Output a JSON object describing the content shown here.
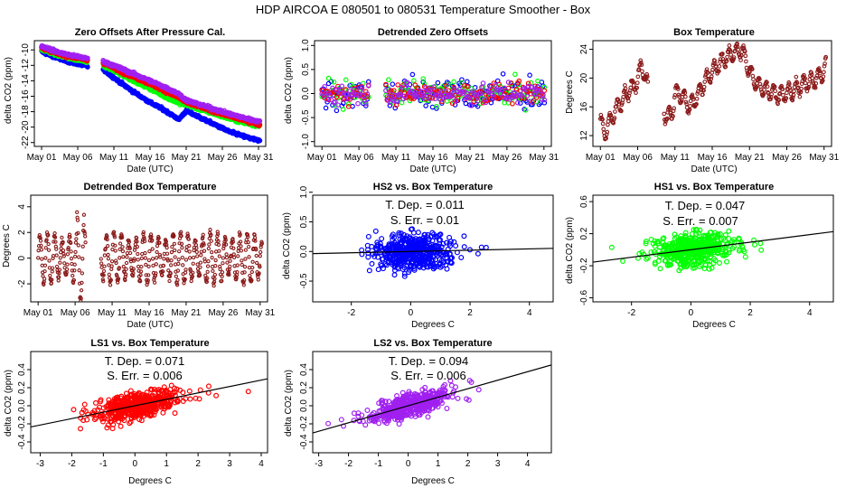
{
  "figure": {
    "title": "HDP    AIRCOA E    080501 to 080531    Temperature Smoother - Box"
  },
  "chart_data": [
    {
      "type": "scatter",
      "title": "Zero Offsets After Pressure Cal.",
      "xlabel": "Date (UTC)",
      "ylabel": "delta CO2 (ppm)",
      "xlim": [
        0,
        32
      ],
      "ylim": [
        -22.5,
        -8.8
      ],
      "xticks": [
        1,
        6,
        11,
        16,
        21,
        26,
        31
      ],
      "xticklabels": [
        "May 01",
        "May 06",
        "May 11",
        "May 16",
        "May 21",
        "May 26",
        "May 31"
      ],
      "yticks": [
        -22,
        -20,
        -18,
        -16,
        -14,
        -12,
        -10
      ],
      "yticklabels": [
        "-22",
        "-20",
        "-18",
        "-16",
        "-14",
        "-12",
        "-10"
      ],
      "gaps": [
        [
          7.4,
          9.5
        ]
      ],
      "series": [
        {
          "name": "HS2",
          "color": "#0000ff",
          "x": [
            1,
            3,
            5,
            7.3,
            9.6,
            12,
            14,
            16,
            18,
            20,
            21,
            23,
            25,
            27,
            29,
            31.2
          ],
          "y": [
            -10.2,
            -11,
            -11.6,
            -12.1,
            -12.6,
            -14.3,
            -15.6,
            -16.8,
            -17.8,
            -19,
            -17.9,
            -18.8,
            -19.7,
            -20.6,
            -21.2,
            -21.8
          ]
        },
        {
          "name": "HS1",
          "color": "#00ff00",
          "x": [
            1,
            3,
            5,
            7.3,
            9.6,
            12,
            14,
            16,
            18,
            20,
            21,
            23,
            25,
            27,
            29,
            31.2
          ],
          "y": [
            -9.9,
            -10.6,
            -11.1,
            -11.5,
            -12,
            -13.2,
            -14.1,
            -15,
            -16,
            -16.9,
            -17.1,
            -17.7,
            -18.3,
            -18.9,
            -19.4,
            -19.9
          ]
        },
        {
          "name": "LS1",
          "color": "#ff0000",
          "x": [
            1,
            3,
            5,
            7.3,
            9.6,
            12,
            14,
            16,
            18,
            20,
            21,
            23,
            25,
            27,
            29,
            31.2
          ],
          "y": [
            -9.7,
            -10.4,
            -10.9,
            -11.3,
            -11.7,
            -12.8,
            -13.6,
            -14.4,
            -15.3,
            -16.2,
            -16.8,
            -17.4,
            -18,
            -18.6,
            -19.1,
            -19.7
          ]
        },
        {
          "name": "LS2",
          "color": "#a020f0",
          "x": [
            1,
            3,
            5,
            7.3,
            9.6,
            12,
            14,
            16,
            18,
            20,
            21,
            23,
            25,
            27,
            29,
            31.2
          ],
          "y": [
            -9.5,
            -10.2,
            -10.7,
            -11.1,
            -11.5,
            -12.4,
            -13.2,
            -14,
            -14.8,
            -15.7,
            -16.5,
            -17.1,
            -17.7,
            -18.3,
            -18.8,
            -19.3
          ]
        }
      ]
    },
    {
      "type": "scatter",
      "title": "Detrended Zero Offsets",
      "xlabel": "Date (UTC)",
      "ylabel": "delta CO2 (ppm)",
      "xlim": [
        0,
        32
      ],
      "ylim": [
        -1.1,
        1.1
      ],
      "xticks": [
        1,
        6,
        11,
        16,
        21,
        26,
        31
      ],
      "xticklabels": [
        "May 01",
        "May 06",
        "May 11",
        "May 16",
        "May 21",
        "May 26",
        "May 31"
      ],
      "yticks": [
        -1.0,
        -0.5,
        0.0,
        0.5,
        1.0
      ],
      "yticklabels": [
        "-1.0",
        "-0.5",
        "0.0",
        "0.5",
        "1.0"
      ],
      "gaps": [
        [
          7.4,
          9.5
        ]
      ],
      "spread": {
        "HS2": 0.32,
        "HS1": 0.22,
        "LS1": 0.18,
        "LS2": 0.18
      },
      "series_names": [
        "HS2",
        "HS1",
        "LS1",
        "LS2"
      ],
      "series_colors": [
        "#0000ff",
        "#00ff00",
        "#ff0000",
        "#a020f0"
      ]
    },
    {
      "type": "line",
      "title": "Box Temperature",
      "xlabel": "Date (UTC)",
      "ylabel": "Degrees C",
      "xlim": [
        0,
        32
      ],
      "ylim": [
        10.5,
        25.2
      ],
      "xticks": [
        1,
        6,
        11,
        16,
        21,
        26,
        31
      ],
      "xticklabels": [
        "May 01",
        "May 06",
        "May 11",
        "May 16",
        "May 21",
        "May 26",
        "May 31"
      ],
      "yticks": [
        12,
        16,
        20,
        24
      ],
      "yticklabels": [
        "12",
        "16",
        "20",
        "24"
      ],
      "color": "#8b1a1a",
      "gaps": [
        [
          7.4,
          9.5
        ]
      ],
      "x": [
        1,
        1.5,
        2,
        3,
        4,
        5,
        6,
        6.5,
        7,
        7.3,
        9.6,
        10.5,
        11,
        12,
        13,
        14,
        15,
        16,
        17,
        18,
        19,
        20,
        21,
        22,
        23,
        24,
        25,
        26,
        27,
        28,
        29,
        30,
        31,
        31.3
      ],
      "y": [
        14.5,
        12,
        13.5,
        15.5,
        17,
        18.5,
        19.5,
        22,
        20,
        19,
        15,
        14.5,
        18,
        17.5,
        16,
        17.5,
        19.5,
        21,
        22,
        23,
        23.5,
        24,
        21,
        19,
        18.5,
        18,
        17.5,
        18,
        18.5,
        19,
        19.5,
        20,
        21,
        22
      ]
    },
    {
      "type": "line",
      "title": "Detrended Box Temperature",
      "xlabel": "Date (UTC)",
      "ylabel": "Degrees C",
      "xlim": [
        0,
        32
      ],
      "ylim": [
        -3.4,
        4.9
      ],
      "xticks": [
        1,
        6,
        11,
        16,
        21,
        26,
        31
      ],
      "xticklabels": [
        "May 01",
        "May 06",
        "May 11",
        "May 16",
        "May 21",
        "May 26",
        "May 31"
      ],
      "yticks": [
        -2,
        0,
        2,
        4
      ],
      "yticklabels": [
        "-2",
        "0",
        "2",
        "4"
      ],
      "color": "#8b1a1a",
      "gaps": [
        [
          7.4,
          9.5
        ]
      ],
      "amplitude": 2.5
    },
    {
      "type": "scatter",
      "title": "HS2 vs. Box Temperature",
      "xlabel": "Degrees C",
      "ylabel": "delta CO2 (ppm)",
      "xlim": [
        -3.3,
        4.8
      ],
      "ylim": [
        -0.85,
        0.95
      ],
      "xticks": [
        -2,
        0,
        2,
        4
      ],
      "xticklabels": [
        "-2",
        "0",
        "2",
        "4"
      ],
      "yticks": [
        -0.5,
        0.0,
        0.5,
        1.0
      ],
      "yticklabels": [
        "-0.5",
        "0.0",
        "0.5",
        "1.0"
      ],
      "color": "#0000ff",
      "slope": 0.011,
      "spread": 0.25,
      "annotation_dep": "T. Dep. =  0.011",
      "annotation_err": "S. Err. =  0.01"
    },
    {
      "type": "scatter",
      "title": "HS1 vs. Box Temperature",
      "xlabel": "Degrees C",
      "ylabel": "delta CO2 (ppm)",
      "xlim": [
        -3.3,
        4.8
      ],
      "ylim": [
        -0.65,
        0.68
      ],
      "xticks": [
        -2,
        0,
        2,
        4
      ],
      "xticklabels": [
        "-2",
        "0",
        "2",
        "4"
      ],
      "yticks": [
        -0.6,
        -0.2,
        0.2,
        0.6
      ],
      "yticklabels": [
        "-0.6",
        "-0.2",
        "0.2",
        "0.6"
      ],
      "color": "#00ff00",
      "slope": 0.047,
      "spread": 0.17,
      "annotation_dep": "T. Dep. =  0.047",
      "annotation_err": "S. Err. =  0.007"
    },
    {
      "type": "scatter",
      "title": "LS1 vs. Box Temperature",
      "xlabel": "Degrees C",
      "ylabel": "delta CO2 (ppm)",
      "xlim": [
        -3.3,
        4.2
      ],
      "ylim": [
        -0.52,
        0.6
      ],
      "xticks": [
        -3,
        -2,
        -1,
        0,
        1,
        2,
        3,
        4
      ],
      "xticklabels": [
        "-3",
        "-2",
        "-1",
        "0",
        "1",
        "2",
        "3",
        "4"
      ],
      "yticks": [
        -0.4,
        -0.2,
        0.0,
        0.2,
        0.4
      ],
      "yticklabels": [
        "-0.4",
        "-0.2",
        "0.0",
        "0.2",
        "0.4"
      ],
      "color": "#ff0000",
      "slope": 0.071,
      "spread": 0.13,
      "annotation_dep": "T. Dep. =  0.071",
      "annotation_err": "S. Err. =  0.006"
    },
    {
      "type": "scatter",
      "title": "LS2 vs. Box Temperature",
      "xlabel": "Degrees C",
      "ylabel": "delta CO2 (ppm)",
      "xlim": [
        -3.2,
        4.8
      ],
      "ylim": [
        -0.52,
        0.6
      ],
      "xticks": [
        -3,
        -2,
        -1,
        0,
        1,
        2,
        3,
        4
      ],
      "xticklabels": [
        "-3",
        "-2",
        "-1",
        "0",
        "1",
        "2",
        "3",
        "4"
      ],
      "yticks": [
        -0.4,
        -0.2,
        0.0,
        0.2,
        0.4
      ],
      "yticklabels": [
        "-0.4",
        "-0.2",
        "0.0",
        "0.2",
        "0.4"
      ],
      "color": "#a020f0",
      "slope": 0.094,
      "spread": 0.11,
      "annotation_dep": "T. Dep. =  0.094",
      "annotation_err": "S. Err. =  0.006"
    }
  ]
}
